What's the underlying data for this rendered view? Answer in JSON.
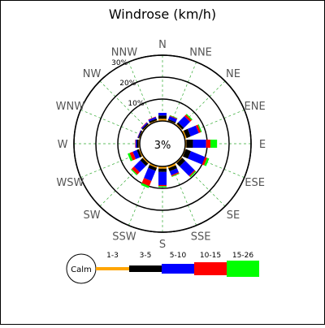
{
  "chart_data": {
    "type": "windrose",
    "title": "Windrose (km/h)",
    "calm_label": "3%",
    "ring_labels": [
      "10%",
      "20%",
      "30%"
    ],
    "rings_percent": [
      10,
      20,
      30
    ],
    "directions": [
      "N",
      "NNE",
      "NE",
      "ENE",
      "E",
      "ESE",
      "SE",
      "SSE",
      "S",
      "SSW",
      "SW",
      "WSW",
      "W",
      "WNW",
      "NW",
      "NNW"
    ],
    "legend": {
      "calm_label": "Calm",
      "bins": [
        {
          "label": "1-3",
          "color": "#ffa500"
        },
        {
          "label": "3-5",
          "color": "#000000"
        },
        {
          "label": "5-10",
          "color": "#0000ff"
        },
        {
          "label": "10-15",
          "color": "#ff0000"
        },
        {
          "label": "15-26",
          "color": "#00ff00"
        }
      ]
    },
    "series": [
      {
        "name": "1-3",
        "values": [
          1.0,
          0.4,
          0.6,
          0.8,
          0.5,
          0.4,
          0.5,
          1.0,
          1.0,
          0.8,
          0.7,
          0.6,
          0.5,
          0.4,
          0.4,
          0.5
        ]
      },
      {
        "name": "3-5",
        "values": [
          1.5,
          0.6,
          1.0,
          2.0,
          3.0,
          2.5,
          2.0,
          1.5,
          1.5,
          1.5,
          1.5,
          1.0,
          0.8,
          0.5,
          0.6,
          0.8
        ]
      },
      {
        "name": "5-10",
        "values": [
          1.2,
          1.5,
          4.0,
          4.0,
          6.0,
          7.0,
          6.0,
          2.0,
          6.0,
          5.0,
          4.0,
          2.0,
          0.6,
          0.3,
          0.5,
          0.8
        ]
      },
      {
        "name": "10-15",
        "values": [
          0.0,
          0.3,
          1.0,
          1.0,
          2.0,
          1.0,
          0.5,
          0.5,
          0.5,
          2.5,
          1.5,
          1.5,
          0.2,
          0.1,
          0.2,
          0.2
        ]
      },
      {
        "name": "15-26",
        "values": [
          0.0,
          0.2,
          0.5,
          0.5,
          3.0,
          1.0,
          0.5,
          0.3,
          0.5,
          1.0,
          0.5,
          1.0,
          0.0,
          0.0,
          0.0,
          0.0
        ]
      }
    ]
  }
}
